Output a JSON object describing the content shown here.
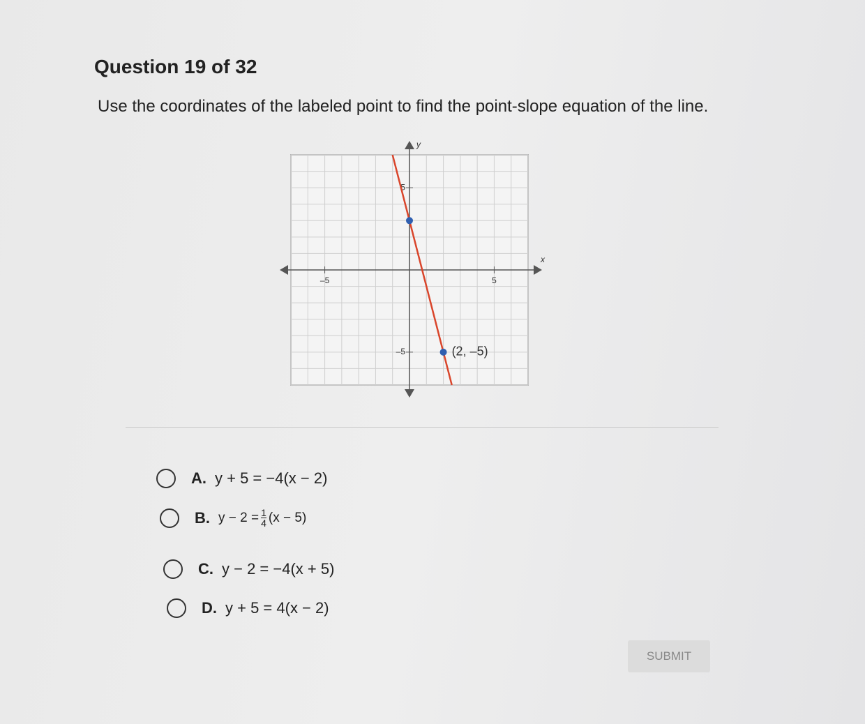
{
  "header": {
    "title": "Question 19 of 32"
  },
  "prompt": "Use the coordinates of the labeled point to find the point-slope equation of the line.",
  "graph": {
    "x_label": "x",
    "y_label": "y",
    "xlim": [
      -7,
      7
    ],
    "ylim": [
      -7,
      7
    ],
    "xticks": [
      {
        "value": -5,
        "label": "–5"
      },
      5
    ],
    "yticks": [
      {
        "value": -5,
        "label": "–5"
      },
      5
    ],
    "line_color": "#d9452b",
    "point_color": "#2f5fb0",
    "points": [
      {
        "x": 0,
        "y": 3
      },
      {
        "x": 2,
        "y": -5,
        "label": "(2, –5)"
      }
    ]
  },
  "options": [
    {
      "letter": "A.",
      "equation": "y + 5 = −4(x − 2)"
    },
    {
      "letter": "B.",
      "lhs": "y − 2 =",
      "numerator": "1",
      "denominator": "4",
      "rhs": "(x − 5)"
    },
    {
      "letter": "C.",
      "equation": "y − 2 = −4(x + 5)"
    },
    {
      "letter": "D.",
      "equation": "y + 5 = 4(x − 2)"
    }
  ],
  "submit": "SUBMIT"
}
